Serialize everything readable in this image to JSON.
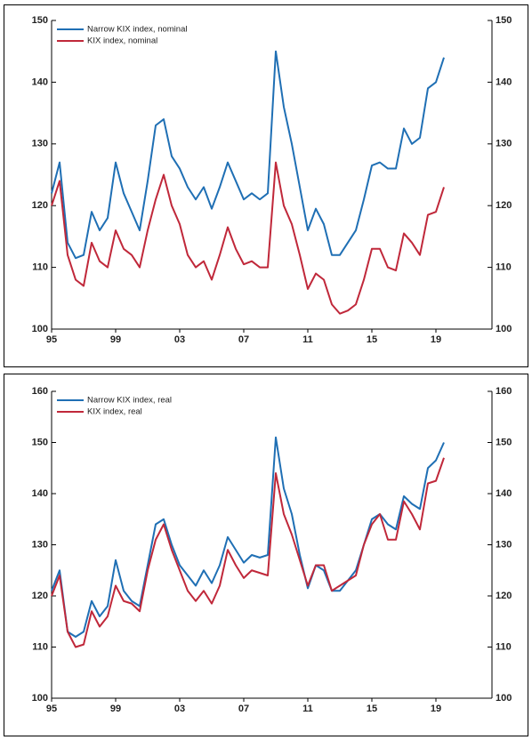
{
  "chart_data": [
    {
      "type": "line",
      "x": [
        1995,
        1995.5,
        1996,
        1996.5,
        1997,
        1997.5,
        1998,
        1998.5,
        1999,
        1999.5,
        2000,
        2000.5,
        2001,
        2001.5,
        2002,
        2002.5,
        2003,
        2003.5,
        2004,
        2004.5,
        2005,
        2005.5,
        2006,
        2006.5,
        2007,
        2007.5,
        2008,
        2008.5,
        2009,
        2009.5,
        2010,
        2010.5,
        2011,
        2011.5,
        2012,
        2012.5,
        2013,
        2013.5,
        2014,
        2014.5,
        2015,
        2015.5,
        2016,
        2016.5,
        2017,
        2017.5,
        2018,
        2018.5,
        2019,
        2019.5
      ],
      "series": [
        {
          "name": "Narrow KIX index, nominal",
          "color": "#1f6fb4",
          "values": [
            122,
            127,
            114,
            111.5,
            112,
            119,
            116,
            118,
            127,
            122,
            119,
            116,
            124,
            133,
            134,
            128,
            126,
            123,
            121,
            123,
            119.5,
            123,
            127,
            124,
            121,
            122,
            121,
            122,
            145,
            136,
            130,
            123,
            116,
            119.5,
            117,
            112,
            112,
            114,
            116,
            121,
            126.5,
            127,
            126,
            126,
            132.5,
            130,
            131,
            139,
            140,
            144
          ]
        },
        {
          "name": "KIX index, nominal",
          "color": "#c0283a",
          "values": [
            120,
            124,
            112,
            108,
            107,
            114,
            111,
            110,
            116,
            113,
            112,
            110,
            116,
            121,
            125,
            120,
            117,
            112,
            110,
            111,
            108,
            112,
            116.5,
            113,
            110.5,
            111,
            110,
            110,
            127,
            120,
            117,
            112,
            106.5,
            109,
            108,
            104,
            102.5,
            103,
            104,
            108,
            113,
            113,
            110,
            109.5,
            115.5,
            114,
            112,
            118.5,
            119,
            123
          ]
        }
      ],
      "xlim": [
        1995,
        2022.5
      ],
      "xticks": [
        {
          "value": 1995,
          "label": "95"
        },
        {
          "value": 1999,
          "label": "99"
        },
        {
          "value": 2003,
          "label": "03"
        },
        {
          "value": 2007,
          "label": "07"
        },
        {
          "value": 2011,
          "label": "11"
        },
        {
          "value": 2015,
          "label": "15"
        },
        {
          "value": 2019,
          "label": "19"
        }
      ],
      "ylim": [
        100,
        150
      ],
      "yticks": [
        100,
        110,
        120,
        130,
        140,
        150
      ],
      "grid": false,
      "legend": "upper left"
    },
    {
      "type": "line",
      "x": [
        1995,
        1995.5,
        1996,
        1996.5,
        1997,
        1997.5,
        1998,
        1998.5,
        1999,
        1999.5,
        2000,
        2000.5,
        2001,
        2001.5,
        2002,
        2002.5,
        2003,
        2003.5,
        2004,
        2004.5,
        2005,
        2005.5,
        2006,
        2006.5,
        2007,
        2007.5,
        2008,
        2008.5,
        2009,
        2009.5,
        2010,
        2010.5,
        2011,
        2011.5,
        2012,
        2012.5,
        2013,
        2013.5,
        2014,
        2014.5,
        2015,
        2015.5,
        2016,
        2016.5,
        2017,
        2017.5,
        2018,
        2018.5,
        2019,
        2019.5
      ],
      "series": [
        {
          "name": "Narrow KIX index, real",
          "color": "#1f6fb4",
          "values": [
            121,
            125,
            113,
            112,
            113,
            119,
            116,
            118,
            127,
            121,
            119,
            118,
            126,
            134,
            135,
            130,
            126,
            124,
            122,
            125,
            122.5,
            126,
            131.5,
            129,
            126.5,
            128,
            127.5,
            128,
            151,
            141,
            136,
            128,
            121.5,
            126,
            125,
            121,
            121,
            123,
            125,
            130,
            135,
            136,
            134,
            133,
            139.5,
            138,
            137,
            145,
            146.5,
            150
          ]
        },
        {
          "name": "KIX index, real",
          "color": "#c0283a",
          "values": [
            120,
            124,
            113,
            110,
            110.5,
            117,
            114,
            116,
            122,
            119,
            118.5,
            117,
            125,
            131,
            134,
            129,
            125,
            121,
            119,
            121,
            118.5,
            122,
            129,
            126,
            123.5,
            125,
            124.5,
            124,
            144,
            136,
            132,
            127,
            122,
            126,
            126,
            121,
            122,
            123,
            124,
            130,
            134,
            136,
            131,
            131,
            138.5,
            136,
            133,
            142,
            142.5,
            147
          ]
        }
      ],
      "xlim": [
        1995,
        2022.5
      ],
      "xticks": [
        {
          "value": 1995,
          "label": "95"
        },
        {
          "value": 1999,
          "label": "99"
        },
        {
          "value": 2003,
          "label": "03"
        },
        {
          "value": 2007,
          "label": "07"
        },
        {
          "value": 2011,
          "label": "11"
        },
        {
          "value": 2015,
          "label": "15"
        },
        {
          "value": 2019,
          "label": "19"
        }
      ],
      "ylim": [
        100,
        160
      ],
      "yticks": [
        100,
        110,
        120,
        130,
        140,
        150,
        160
      ],
      "grid": false,
      "legend": "upper left"
    }
  ]
}
